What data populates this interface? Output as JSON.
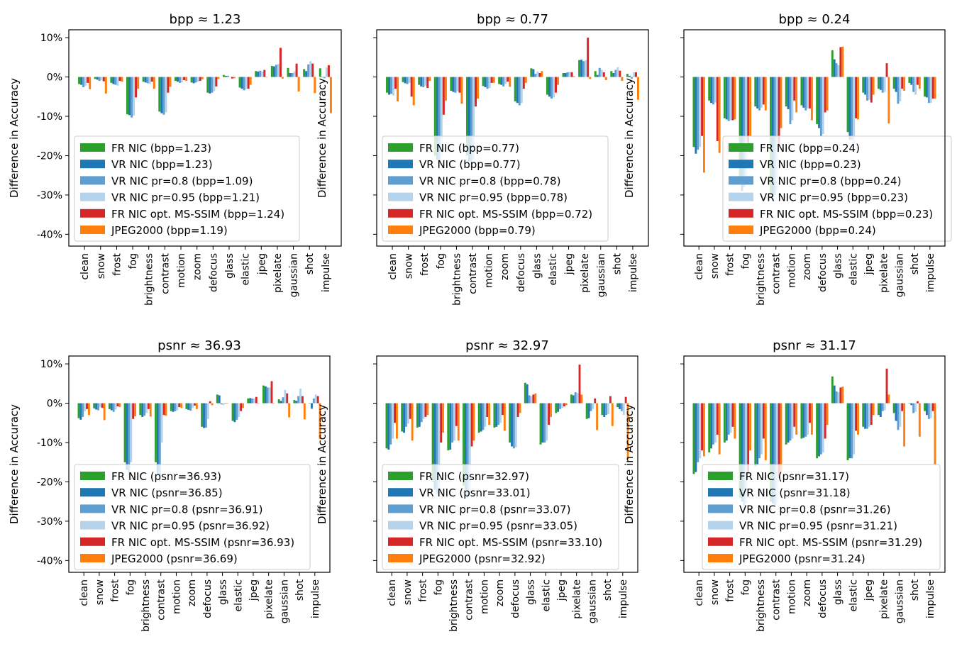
{
  "categories": [
    "clean",
    "snow",
    "frost",
    "fog",
    "brightness",
    "contrast",
    "motion",
    "zoom",
    "defocus",
    "glass",
    "elastic",
    "jpeg",
    "pixelate",
    "gaussian",
    "shot",
    "impulse"
  ],
  "colors": [
    "#2ca02c",
    "#1f77b4",
    "#5f9ed1",
    "#b5d3ea",
    "#d62728",
    "#ff7f0e"
  ],
  "chart_data": [
    {
      "type": "bar",
      "title": "bpp ≈ 1.23",
      "ylabel": "Difference in Accuracy",
      "ylim": [
        -0.43,
        0.12
      ],
      "yticks": [
        0.1,
        0,
        -0.1,
        -0.2,
        -0.3,
        -0.4
      ],
      "ytick_labels": [
        "10%",
        "0%",
        "-10%",
        "-20%",
        "-30%",
        "-40%"
      ],
      "show_ytick_labels": true,
      "series": [
        {
          "name": "FR NIC (bpp=1.23)",
          "values": [
            -0.018,
            -0.005,
            -0.015,
            -0.095,
            -0.012,
            -0.088,
            -0.01,
            -0.014,
            -0.04,
            0.005,
            -0.027,
            0.015,
            0.028,
            0.023,
            0.02,
            0.022
          ]
        },
        {
          "name": "VR NIC (bpp=1.23)",
          "values": [
            -0.02,
            -0.007,
            -0.018,
            -0.097,
            -0.014,
            -0.092,
            -0.012,
            -0.016,
            -0.042,
            0.003,
            -0.03,
            0.014,
            0.027,
            0.01,
            0.015,
            0.0
          ]
        },
        {
          "name": "VR NIC pr=0.8 (bpp=1.09)",
          "values": [
            -0.026,
            -0.01,
            -0.02,
            -0.103,
            -0.016,
            -0.096,
            -0.015,
            -0.014,
            -0.04,
            0.003,
            -0.034,
            0.016,
            0.031,
            0.01,
            0.032,
            -0.003
          ]
        },
        {
          "name": "VR NIC pr=0.95 (bpp=1.21)",
          "values": [
            -0.022,
            -0.008,
            -0.022,
            -0.098,
            -0.018,
            -0.09,
            -0.014,
            -0.012,
            -0.036,
            0.0,
            -0.03,
            0.014,
            0.033,
            0.014,
            0.04,
            0.024
          ]
        },
        {
          "name": "FR NIC opt. MS-SSIM (bpp=1.24)",
          "values": [
            -0.015,
            -0.011,
            -0.01,
            -0.052,
            -0.012,
            -0.04,
            -0.008,
            -0.01,
            -0.024,
            -0.004,
            -0.03,
            0.018,
            0.074,
            0.034,
            0.034,
            0.03
          ]
        },
        {
          "name": "JPEG2000 (bpp=1.19)",
          "values": [
            -0.031,
            -0.042,
            -0.012,
            -0.03,
            -0.03,
            -0.025,
            -0.01,
            -0.006,
            -0.005,
            -0.003,
            -0.02,
            0.0,
            -0.004,
            -0.037,
            -0.041,
            -0.092
          ]
        }
      ]
    },
    {
      "type": "bar",
      "title": "bpp ≈ 0.77",
      "ylabel": "Difference in Accuracy",
      "ylim": [
        -0.43,
        0.12
      ],
      "yticks": [
        0.1,
        0,
        -0.1,
        -0.2,
        -0.3,
        -0.4
      ],
      "ytick_labels": [
        "10%",
        "0%",
        "-10%",
        "-20%",
        "-30%",
        "-40%"
      ],
      "show_ytick_labels": false,
      "series": [
        {
          "name": "FR NIC (bpp=0.77)",
          "values": [
            -0.04,
            -0.013,
            -0.02,
            -0.2,
            -0.035,
            -0.2,
            -0.023,
            -0.018,
            -0.062,
            0.022,
            -0.045,
            0.01,
            0.043,
            0.015,
            0.015,
            0.008
          ]
        },
        {
          "name": "VR NIC (bpp=0.77)",
          "values": [
            -0.045,
            -0.016,
            -0.024,
            -0.21,
            -0.038,
            -0.215,
            -0.026,
            -0.02,
            -0.066,
            0.02,
            -0.05,
            0.01,
            0.044,
            0.005,
            0.01,
            0.003
          ]
        },
        {
          "name": "VR NIC pr=0.8 (bpp=0.78)",
          "values": [
            -0.043,
            -0.018,
            -0.026,
            -0.22,
            -0.04,
            -0.23,
            -0.03,
            -0.024,
            -0.072,
            0.008,
            -0.055,
            0.012,
            0.04,
            0.023,
            0.018,
            -0.004
          ]
        },
        {
          "name": "VR NIC pr=0.95 (bpp=0.78)",
          "values": [
            -0.047,
            -0.015,
            -0.022,
            -0.2,
            -0.036,
            -0.21,
            -0.028,
            -0.018,
            -0.066,
            0.014,
            -0.052,
            0.013,
            0.043,
            0.018,
            0.025,
            0.012
          ]
        },
        {
          "name": "FR NIC opt. MS-SSIM (bpp=0.72)",
          "values": [
            -0.03,
            -0.05,
            -0.028,
            -0.096,
            -0.04,
            -0.075,
            -0.015,
            -0.012,
            -0.03,
            0.01,
            -0.04,
            0.012,
            0.1,
            0.012,
            0.016,
            0.012
          ]
        },
        {
          "name": "JPEG2000 (bpp=0.79)",
          "values": [
            -0.062,
            -0.072,
            -0.01,
            -0.06,
            -0.068,
            -0.055,
            -0.015,
            -0.025,
            -0.015,
            0.015,
            -0.02,
            0.002,
            -0.005,
            -0.008,
            -0.01,
            -0.058
          ]
        }
      ]
    },
    {
      "type": "bar",
      "title": "bpp ≈ 0.24",
      "ylabel": "Difference in Accuracy",
      "ylim": [
        -0.43,
        0.12
      ],
      "yticks": [
        0.1,
        0,
        -0.1,
        -0.2,
        -0.3,
        -0.4
      ],
      "ytick_labels": [
        "10%",
        "0%",
        "-10%",
        "-20%",
        "-30%",
        "-40%"
      ],
      "show_ytick_labels": false,
      "series": [
        {
          "name": "FR NIC (bpp=0.24)",
          "values": [
            -0.178,
            -0.06,
            -0.105,
            -0.27,
            -0.075,
            -0.3,
            -0.075,
            -0.072,
            -0.12,
            0.068,
            -0.14,
            -0.04,
            -0.03,
            -0.03,
            -0.015,
            -0.05
          ]
        },
        {
          "name": "VR NIC (bpp=0.23)",
          "values": [
            -0.195,
            -0.066,
            -0.108,
            -0.29,
            -0.08,
            -0.315,
            -0.082,
            -0.078,
            -0.13,
            0.045,
            -0.16,
            -0.045,
            -0.033,
            -0.038,
            -0.02,
            -0.052
          ]
        },
        {
          "name": "VR NIC pr=0.8 (bpp=0.24)",
          "values": [
            -0.185,
            -0.07,
            -0.112,
            -0.28,
            -0.085,
            -0.3,
            -0.12,
            -0.085,
            -0.15,
            0.035,
            -0.16,
            -0.06,
            -0.04,
            -0.068,
            -0.038,
            -0.066
          ]
        },
        {
          "name": "VR NIC pr=0.95 (bpp=0.23)",
          "values": [
            -0.178,
            -0.065,
            -0.11,
            -0.26,
            -0.078,
            -0.29,
            -0.11,
            -0.08,
            -0.145,
            0.03,
            -0.17,
            -0.058,
            -0.038,
            -0.062,
            -0.045,
            -0.066
          ]
        },
        {
          "name": "FR NIC opt. MS-SSIM (bpp=0.23)",
          "values": [
            -0.15,
            -0.163,
            -0.11,
            -0.19,
            -0.07,
            -0.17,
            -0.06,
            -0.08,
            -0.09,
            0.076,
            -0.105,
            -0.065,
            0.035,
            -0.03,
            -0.02,
            -0.055
          ]
        },
        {
          "name": "JPEG2000 (bpp=0.24)",
          "values": [
            -0.243,
            -0.193,
            -0.108,
            -0.15,
            -0.085,
            -0.13,
            -0.09,
            -0.11,
            -0.085,
            0.077,
            -0.108,
            -0.045,
            -0.118,
            -0.035,
            -0.03,
            -0.055
          ]
        }
      ]
    },
    {
      "type": "bar",
      "title": "psnr ≈ 36.93",
      "ylabel": "Difference in Accuracy",
      "ylim": [
        -0.43,
        0.12
      ],
      "yticks": [
        0.1,
        0,
        -0.1,
        -0.2,
        -0.3,
        -0.4
      ],
      "ytick_labels": [
        "10%",
        "0%",
        "-10%",
        "-20%",
        "-30%",
        "-40%"
      ],
      "show_ytick_labels": true,
      "series": [
        {
          "name": "FR NIC (psnr=36.93)",
          "values": [
            -0.038,
            -0.013,
            -0.015,
            -0.15,
            -0.03,
            -0.15,
            -0.02,
            -0.015,
            -0.06,
            0.022,
            -0.045,
            0.012,
            0.045,
            0.01,
            0.008,
            0.0
          ]
        },
        {
          "name": "VR NIC (psnr=36.85)",
          "values": [
            -0.042,
            -0.016,
            -0.018,
            -0.17,
            -0.035,
            -0.18,
            -0.022,
            -0.017,
            -0.063,
            0.02,
            -0.048,
            0.013,
            0.043,
            0.006,
            0.006,
            -0.014
          ]
        },
        {
          "name": "VR NIC pr=0.8 (psnr=36.91)",
          "values": [
            -0.035,
            -0.018,
            -0.022,
            -0.19,
            -0.032,
            -0.2,
            -0.02,
            -0.019,
            -0.062,
            -0.003,
            -0.042,
            0.012,
            0.04,
            0.015,
            0.018,
            0.012
          ]
        },
        {
          "name": "VR NIC pr=0.95 (psnr=36.92)",
          "values": [
            -0.02,
            -0.01,
            -0.016,
            -0.15,
            -0.025,
            -0.1,
            -0.018,
            -0.012,
            -0.04,
            -0.005,
            -0.035,
            0.012,
            0.04,
            0.034,
            0.037,
            0.022
          ]
        },
        {
          "name": "FR NIC opt. MS-SSIM (psnr=36.93)",
          "values": [
            -0.015,
            -0.012,
            -0.008,
            -0.04,
            -0.015,
            -0.03,
            -0.01,
            -0.006,
            0.005,
            0.0,
            -0.02,
            0.016,
            0.056,
            0.025,
            0.018,
            0.018
          ]
        },
        {
          "name": "JPEG2000 (psnr=36.69)",
          "values": [
            -0.03,
            -0.043,
            -0.01,
            -0.033,
            -0.034,
            -0.032,
            -0.012,
            -0.015,
            -0.005,
            0.0,
            -0.012,
            0.0,
            0.0,
            -0.036,
            -0.041,
            -0.091
          ]
        }
      ]
    },
    {
      "type": "bar",
      "title": "psnr ≈ 32.97",
      "ylabel": "Difference in Accuracy",
      "ylim": [
        -0.43,
        0.12
      ],
      "yticks": [
        0.1,
        0,
        -0.1,
        -0.2,
        -0.3,
        -0.4
      ],
      "ytick_labels": [
        "10%",
        "0%",
        "-10%",
        "-20%",
        "-30%",
        "-40%"
      ],
      "show_ytick_labels": false,
      "series": [
        {
          "name": "FR NIC (psnr=32.97)",
          "values": [
            -0.115,
            -0.072,
            -0.062,
            -0.2,
            -0.12,
            -0.21,
            -0.075,
            -0.062,
            -0.1,
            0.052,
            -0.105,
            -0.025,
            0.022,
            -0.04,
            -0.03,
            -0.01
          ]
        },
        {
          "name": "VR NIC (psnr=33.01)",
          "values": [
            -0.118,
            -0.075,
            -0.06,
            -0.22,
            -0.118,
            -0.22,
            -0.072,
            -0.06,
            -0.11,
            0.048,
            -0.1,
            -0.022,
            0.02,
            -0.038,
            -0.035,
            -0.015
          ]
        },
        {
          "name": "VR NIC pr=0.8 (psnr=33.07)",
          "values": [
            -0.105,
            -0.06,
            -0.048,
            -0.23,
            -0.1,
            -0.24,
            -0.068,
            -0.055,
            -0.115,
            0.02,
            -0.1,
            -0.015,
            0.028,
            -0.02,
            -0.03,
            -0.02
          ]
        },
        {
          "name": "VR NIC pr=0.95 (psnr=33.05)",
          "values": [
            -0.09,
            -0.052,
            -0.04,
            -0.22,
            -0.095,
            -0.23,
            -0.06,
            -0.05,
            -0.112,
            0.018,
            -0.095,
            -0.012,
            0.026,
            -0.015,
            -0.028,
            -0.03
          ]
        },
        {
          "name": "FR NIC opt. MS-SSIM (psnr=33.10)",
          "values": [
            -0.05,
            -0.04,
            -0.035,
            -0.1,
            -0.058,
            -0.11,
            -0.035,
            -0.03,
            -0.035,
            0.022,
            -0.055,
            -0.008,
            0.098,
            0.012,
            0.018,
            0.016
          ]
        },
        {
          "name": "JPEG2000 (psnr=32.92)",
          "values": [
            -0.09,
            -0.095,
            -0.03,
            -0.075,
            -0.095,
            -0.095,
            -0.055,
            -0.07,
            -0.025,
            0.025,
            -0.035,
            -0.005,
            0.022,
            -0.068,
            -0.058,
            -0.143
          ]
        }
      ]
    },
    {
      "type": "bar",
      "title": "psnr ≈ 31.17",
      "ylabel": "Difference in Accuracy",
      "ylim": [
        -0.43,
        0.12
      ],
      "yticks": [
        0.1,
        0,
        -0.1,
        -0.2,
        -0.3,
        -0.4
      ],
      "ytick_labels": [
        "10%",
        "0%",
        "-10%",
        "-20%",
        "-30%",
        "-40%"
      ],
      "show_ytick_labels": false,
      "series": [
        {
          "name": "FR NIC (psnr=31.17)",
          "values": [
            -0.18,
            -0.125,
            -0.1,
            -0.24,
            -0.16,
            -0.25,
            -0.105,
            -0.09,
            -0.14,
            0.068,
            -0.145,
            -0.06,
            -0.03,
            -0.025,
            0.0,
            -0.02
          ]
        },
        {
          "name": "VR NIC (psnr=31.18)",
          "values": [
            -0.175,
            -0.115,
            -0.095,
            -0.25,
            -0.155,
            -0.255,
            -0.1,
            -0.088,
            -0.135,
            0.045,
            -0.14,
            -0.065,
            -0.035,
            -0.045,
            -0.005,
            -0.03
          ]
        },
        {
          "name": "VR NIC pr=0.8 (psnr=31.26)",
          "values": [
            -0.15,
            -0.105,
            -0.08,
            -0.26,
            -0.14,
            -0.26,
            -0.095,
            -0.085,
            -0.13,
            0.03,
            -0.14,
            -0.065,
            -0.02,
            -0.068,
            -0.025,
            -0.04
          ]
        },
        {
          "name": "VR NIC pr=0.95 (psnr=31.21)",
          "values": [
            -0.14,
            -0.1,
            -0.075,
            -0.255,
            -0.13,
            -0.255,
            -0.09,
            -0.08,
            -0.125,
            0.028,
            -0.13,
            -0.06,
            -0.018,
            -0.06,
            -0.022,
            -0.038
          ]
        },
        {
          "name": "FR NIC opt. MS-SSIM (psnr=31.29)",
          "values": [
            -0.12,
            -0.08,
            -0.06,
            -0.18,
            -0.09,
            -0.19,
            -0.06,
            -0.05,
            -0.09,
            0.04,
            -0.07,
            -0.055,
            0.088,
            -0.02,
            0.005,
            -0.02
          ]
        },
        {
          "name": "JPEG2000 (psnr=31.24)",
          "values": [
            -0.135,
            -0.13,
            -0.09,
            -0.12,
            -0.145,
            -0.18,
            -0.08,
            -0.08,
            -0.055,
            0.042,
            -0.08,
            -0.03,
            0.022,
            -0.11,
            -0.085,
            -0.155
          ]
        }
      ]
    }
  ]
}
